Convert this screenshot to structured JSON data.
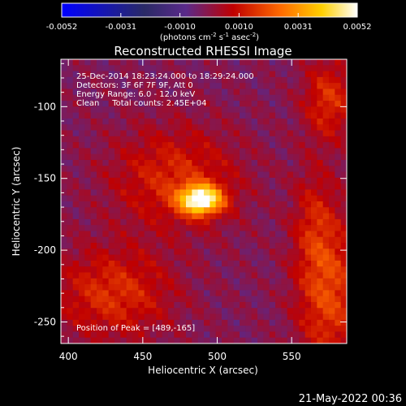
{
  "chart_data": {
    "type": "heatmap",
    "title": "Reconstructed RHESSI Image",
    "xlabel": "Heliocentric X (arcsec)",
    "ylabel": "Heliocentric Y (arcsec)",
    "xlim": [
      395,
      587
    ],
    "ylim": [
      -265,
      -67
    ],
    "xticks": [
      400,
      450,
      500,
      550
    ],
    "yticks": [
      -100,
      -150,
      -200,
      -250
    ],
    "colorbar": {
      "min": -0.0052,
      "max": 0.0052,
      "ticks": [
        "-0.0052",
        "-0.0031",
        "-0.0010",
        "0.0010",
        "0.0031",
        "0.0052"
      ],
      "unit_parts": [
        "(photons cm",
        "-2",
        " s",
        "-1",
        " asec",
        "-2",
        ")"
      ]
    },
    "info": [
      "25-Dec-2014 18:23:24.000 to 18:29:24.000",
      "Detectors: 3F 6F 7F 9F, Att 0",
      "Energy Range: 6.0 - 12.0 keV",
      "Clean     Total counts: 2.45E+04"
    ],
    "peak_text": "Position of Peak = [489,-165]",
    "peak": {
      "x": 489,
      "y": -165,
      "value": 0.0052
    },
    "sources": [
      {
        "x": 489,
        "y": -165,
        "sx": 10,
        "sy": 7,
        "amp": 0.0052
      },
      {
        "x": 472,
        "y": -150,
        "sx": 30,
        "sy": 25,
        "amp": 0.0016
      },
      {
        "x": 430,
        "y": -230,
        "sx": 28,
        "sy": 22,
        "amp": 0.0017
      },
      {
        "x": 575,
        "y": -230,
        "sx": 15,
        "sy": 38,
        "amp": 0.002
      },
      {
        "x": 575,
        "y": -95,
        "sx": 12,
        "sy": 20,
        "amp": 0.0017
      },
      {
        "x": 565,
        "y": -180,
        "sx": 10,
        "sy": 28,
        "amp": 0.001
      }
    ],
    "colors": [
      "#0000ff",
      "#000000",
      "#5a2a8a",
      "#c00000",
      "#ff6a00",
      "#ffd000",
      "#ffffff"
    ]
  },
  "timestamp": "21-May-2022 00:36"
}
